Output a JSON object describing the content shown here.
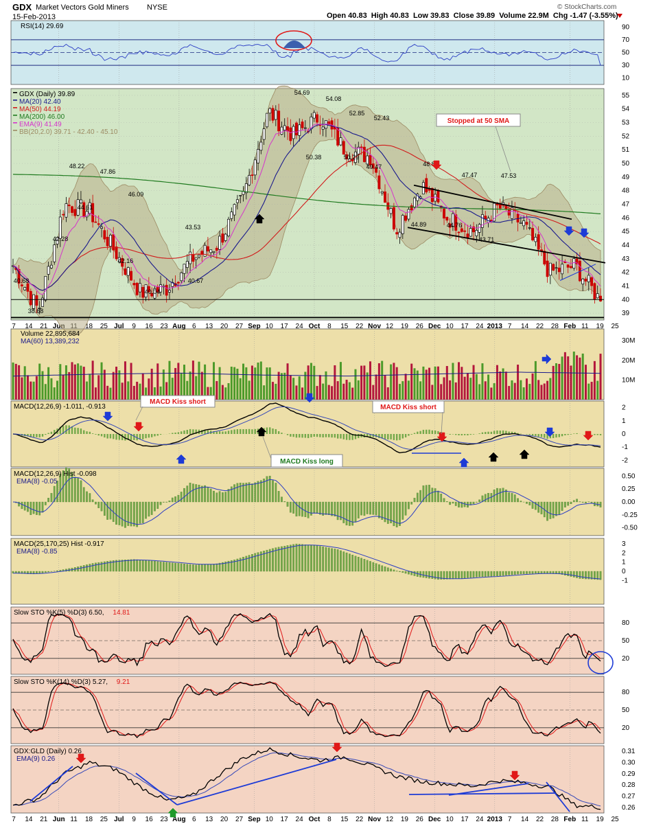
{
  "header": {
    "symbol": "GDX",
    "name": "Market Vectors Gold Miners",
    "exchange": "NYSE",
    "date": "15-Feb-2013",
    "brand": "© StockCharts.com",
    "quote": "Open 40.83  High 40.83  Low 39.83  Close 39.89  Volume 22.9M  Chg -1.47 (-3.55%)"
  },
  "colors": {
    "up": "#000000",
    "down": "#cc0000",
    "vol_up": "#4c9a2a",
    "vol_down": "#b3173c",
    "ma20": "#1a1a8c",
    "ma50": "#d11a1a",
    "ma200": "#1f7a1f",
    "ema9": "#d633cc",
    "bb": "#9c8a63",
    "hist": "#74a84a",
    "stoch_k": "#000000",
    "stoch_d": "#e01818",
    "annot_blue": "#1d3bd6",
    "annot_red": "#e01818"
  },
  "x_axis": {
    "labels": [
      "7",
      "14",
      "21",
      "Jun",
      "11",
      "18",
      "25",
      "Jul",
      "9",
      "16",
      "23",
      "Aug",
      "6",
      "13",
      "20",
      "27",
      "Sep",
      "10",
      "17",
      "24",
      "Oct",
      "8",
      "15",
      "22",
      "Nov",
      "12",
      "19",
      "26",
      "Dec",
      "10",
      "17",
      "24",
      "2013",
      "7",
      "14",
      "22",
      "28",
      "Feb",
      "11",
      "19",
      "25"
    ]
  },
  "panels": {
    "rsi": {
      "title": "RSI(14) 29.69",
      "ticks": [
        "90",
        "70",
        "50",
        "30",
        "10"
      ]
    },
    "price": {
      "legend": [
        "GDX (Daily) 39.89",
        "MA(20) 42.40",
        "MA(50) 44.19",
        "MA(200) 46.00",
        "EMA(9) 41.49",
        "BB(20,2.0) 39.71 - 42.40 - 45.10"
      ],
      "ticks": [
        "55",
        "54",
        "53",
        "52",
        "51",
        "50",
        "49",
        "48",
        "47",
        "46",
        "45",
        "44",
        "43",
        "42",
        "41",
        "40",
        "39"
      ],
      "price_labels": [
        "54.69",
        "54.08",
        "52.85",
        "52.43",
        "50.38",
        "50.29",
        "49.47",
        "48.22",
        "47.86",
        "46.09",
        "44.61",
        "42.28",
        "42.16",
        "43.53",
        "40.04",
        "40.67",
        "40.68",
        "38.68",
        "48.8",
        "47.47",
        "47.53",
        "44.89",
        "44.76",
        "43.71"
      ],
      "callout": "Stopped at 50 SMA"
    },
    "volume": {
      "title": "Volume 22,895,684",
      "ma": "MA(60) 13,389,232",
      "ticks": [
        "30M",
        "20M",
        "10M"
      ]
    },
    "macd": {
      "title": "MACD(12,26,9) -1.011, -0.913",
      "ticks": [
        "2",
        "1",
        "0",
        "-1",
        "-2"
      ],
      "kiss_short_1": "MACD Kiss short",
      "kiss_short_2": "MACD Kiss short",
      "kiss_long": "MACD Kiss long"
    },
    "hist1": {
      "title": "MACD(12,26,9) Hist -0.098",
      "ema": "EMA(8) -0.05",
      "ticks": [
        "0.50",
        "0.25",
        "0.00",
        "-0.25",
        "-0.50"
      ]
    },
    "hist2": {
      "title": "MACD(25,170,25) Hist -0.917",
      "ema": "EMA(8) -0.85",
      "ticks": [
        "3",
        "2",
        "1",
        "0",
        "-1"
      ]
    },
    "sto5": {
      "title": "Slow STO %K(5) %D(3) 6.50,",
      "d_value": "14.81",
      "ticks": [
        "80",
        "50",
        "20"
      ]
    },
    "sto14": {
      "title": "Slow STO %K(14) %D(3) 5.27,",
      "d_value": "9.21",
      "ticks": [
        "80",
        "50",
        "20"
      ]
    },
    "ratio": {
      "title": "GDX:GLD (Daily) 0.26",
      "ema": "EMA(9) 0.26",
      "ticks": [
        "0.31",
        "0.30",
        "0.29",
        "0.28",
        "0.27",
        "0.26"
      ]
    }
  },
  "chart_data": {
    "type": "candlestick",
    "x": [
      "May-07",
      "May-21",
      "Jun-04",
      "Jun-18",
      "Jul-02",
      "Jul-16",
      "Jul-23",
      "Aug-06",
      "Aug-20",
      "Sep-04",
      "Sep-17",
      "Sep-24",
      "Oct-08",
      "Oct-22",
      "Nov-05",
      "Nov-16",
      "Nov-26",
      "Dec-10",
      "Dec-20",
      "Jan-02",
      "Jan-14",
      "Jan-28",
      "Feb-08",
      "Feb-15"
    ],
    "series": [
      {
        "name": "GDX (Daily)",
        "values": [
          42.5,
          39.2,
          47.0,
          46.5,
          43.5,
          40.5,
          40.8,
          43.0,
          44.0,
          47.5,
          53.8,
          52.0,
          53.5,
          51.0,
          50.5,
          45.2,
          48.4,
          46.0,
          45.0,
          46.8,
          45.5,
          42.0,
          42.5,
          39.89
        ]
      }
    ],
    "ylim": [
      38.5,
      55.5
    ]
  }
}
